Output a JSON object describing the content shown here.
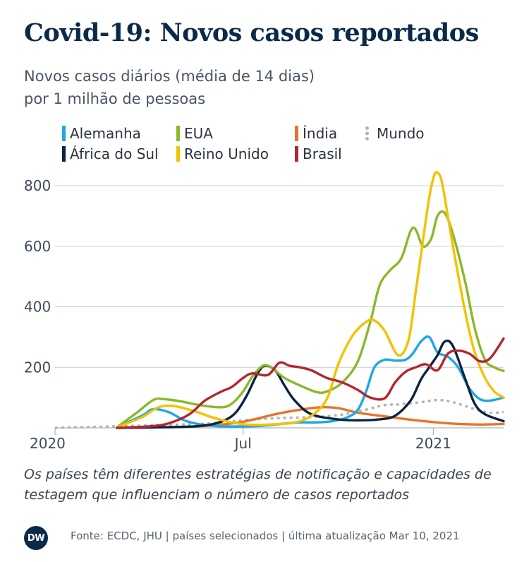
{
  "title": "Covid-19: Novos casos reportados",
  "subtitle_line1": "Novos casos diários (média de 14 dias)",
  "subtitle_line2": "por 1 milhão de pessoas",
  "note": "Os países têm diferentes estratégias de notificação e capacidades de testagem que influenciam o número de casos reportados",
  "logo_text": "DW",
  "source": "Fonte: ECDC, JHU | países selecionados | última atualização Mar 10, 2021",
  "chart_data": {
    "type": "line",
    "y_ticks": [
      "800",
      "600",
      "400",
      "200"
    ],
    "y_tick_values": [
      800,
      600,
      400,
      200
    ],
    "x_tick_labels": [
      "2020",
      "Jul",
      "2021"
    ],
    "x_tick_values": [
      "2020-01-01",
      "2020-07-01",
      "2021-01-01"
    ],
    "x_range": [
      "2020-01-01",
      "2021-03-10"
    ],
    "ylim": [
      0,
      860
    ],
    "grid": true,
    "legend_position": "top",
    "series": [
      {
        "name": "Alemanha",
        "color": "#1fa7e5",
        "style": "solid",
        "x": [
          "2020-03-01",
          "2020-03-25",
          "2020-04-05",
          "2020-04-20",
          "2020-05-05",
          "2020-05-20",
          "2020-06-10",
          "2020-07-01",
          "2020-07-20",
          "2020-08-10",
          "2020-08-25",
          "2020-09-10",
          "2020-09-25",
          "2020-10-10",
          "2020-10-20",
          "2020-10-28",
          "2020-11-05",
          "2020-11-15",
          "2020-11-25",
          "2020-12-05",
          "2020-12-12",
          "2020-12-20",
          "2020-12-28",
          "2021-01-05",
          "2021-01-15",
          "2021-01-25",
          "2021-02-05",
          "2021-02-15",
          "2021-02-25",
          "2021-03-10"
        ],
        "y": [
          2,
          40,
          62,
          52,
          25,
          12,
          5,
          5,
          7,
          14,
          18,
          18,
          22,
          35,
          60,
          120,
          200,
          225,
          222,
          225,
          245,
          285,
          300,
          250,
          235,
          200,
          130,
          95,
          90,
          100
        ]
      },
      {
        "name": "África do Sul",
        "color": "#0c2340",
        "style": "solid",
        "x": [
          "2020-03-01",
          "2020-04-15",
          "2020-05-15",
          "2020-06-01",
          "2020-06-15",
          "2020-06-25",
          "2020-07-05",
          "2020-07-15",
          "2020-07-22",
          "2020-08-01",
          "2020-08-10",
          "2020-08-20",
          "2020-09-05",
          "2020-10-01",
          "2020-10-20",
          "2020-11-10",
          "2020-11-25",
          "2020-12-10",
          "2020-12-20",
          "2020-12-28",
          "2021-01-05",
          "2021-01-12",
          "2021-01-20",
          "2021-02-01",
          "2021-02-10",
          "2021-02-20",
          "2021-03-10"
        ],
        "y": [
          0,
          2,
          5,
          12,
          28,
          55,
          110,
          180,
          205,
          190,
          140,
          90,
          45,
          28,
          25,
          28,
          40,
          90,
          160,
          200,
          240,
          285,
          270,
          160,
          80,
          45,
          22
        ]
      },
      {
        "name": "EUA",
        "color": "#8ab82a",
        "style": "solid",
        "x": [
          "2020-03-01",
          "2020-03-20",
          "2020-04-05",
          "2020-04-15",
          "2020-05-01",
          "2020-05-20",
          "2020-06-10",
          "2020-06-20",
          "2020-07-01",
          "2020-07-10",
          "2020-07-20",
          "2020-07-28",
          "2020-08-10",
          "2020-08-25",
          "2020-09-10",
          "2020-09-20",
          "2020-10-05",
          "2020-10-20",
          "2020-11-01",
          "2020-11-10",
          "2020-11-20",
          "2020-12-01",
          "2020-12-10",
          "2020-12-15",
          "2020-12-22",
          "2020-12-30",
          "2021-01-05",
          "2021-01-12",
          "2021-01-20",
          "2021-02-01",
          "2021-02-10",
          "2021-02-20",
          "2021-03-01",
          "2021-03-10"
        ],
        "y": [
          2,
          50,
          92,
          95,
          88,
          75,
          68,
          80,
          120,
          170,
          205,
          200,
          165,
          140,
          118,
          120,
          150,
          220,
          350,
          470,
          520,
          560,
          650,
          655,
          600,
          625,
          700,
          710,
          640,
          480,
          330,
          225,
          200,
          188
        ]
      },
      {
        "name": "Reino Unido",
        "color": "#f2c200",
        "style": "solid",
        "x": [
          "2020-03-01",
          "2020-03-25",
          "2020-04-10",
          "2020-04-25",
          "2020-05-15",
          "2020-06-01",
          "2020-06-20",
          "2020-07-10",
          "2020-08-01",
          "2020-08-20",
          "2020-09-05",
          "2020-09-20",
          "2020-10-01",
          "2020-10-15",
          "2020-10-28",
          "2020-11-05",
          "2020-11-15",
          "2020-11-28",
          "2020-12-08",
          "2020-12-15",
          "2020-12-22",
          "2020-12-28",
          "2021-01-02",
          "2021-01-06",
          "2021-01-10",
          "2021-01-20",
          "2021-02-01",
          "2021-02-10",
          "2021-02-20",
          "2021-03-01",
          "2021-03-10"
        ],
        "y": [
          2,
          35,
          68,
          72,
          55,
          35,
          18,
          10,
          12,
          18,
          40,
          95,
          210,
          305,
          350,
          355,
          320,
          240,
          290,
          450,
          620,
          760,
          835,
          840,
          800,
          600,
          380,
          250,
          165,
          120,
          100
        ]
      },
      {
        "name": "Índia",
        "color": "#e8732a",
        "style": "solid",
        "x": [
          "2020-03-01",
          "2020-05-01",
          "2020-06-01",
          "2020-07-01",
          "2020-08-01",
          "2020-08-25",
          "2020-09-15",
          "2020-10-01",
          "2020-10-20",
          "2020-11-15",
          "2020-12-15",
          "2021-01-15",
          "2021-02-15",
          "2021-03-10"
        ],
        "y": [
          0,
          3,
          8,
          20,
          45,
          60,
          68,
          65,
          50,
          38,
          25,
          15,
          11,
          13
        ]
      },
      {
        "name": "Mundo",
        "color": "#b0b4ba",
        "style": "dotted",
        "x": [
          "2020-01-01",
          "2020-04-01",
          "2020-06-01",
          "2020-07-01",
          "2020-08-01",
          "2020-09-01",
          "2020-10-01",
          "2020-10-25",
          "2020-11-15",
          "2020-12-01",
          "2020-12-20",
          "2021-01-05",
          "2021-01-20",
          "2021-02-10",
          "2021-02-25",
          "2021-03-10"
        ],
        "y": [
          0,
          8,
          15,
          25,
          32,
          35,
          42,
          58,
          75,
          78,
          85,
          92,
          85,
          62,
          50,
          52
        ]
      },
      {
        "name": "Brasil",
        "color": "#b32630",
        "style": "solid",
        "x": [
          "2020-03-01",
          "2020-04-01",
          "2020-04-20",
          "2020-05-10",
          "2020-05-25",
          "2020-06-10",
          "2020-06-20",
          "2020-07-01",
          "2020-07-10",
          "2020-07-25",
          "2020-08-05",
          "2020-08-15",
          "2020-08-25",
          "2020-09-05",
          "2020-09-20",
          "2020-10-05",
          "2020-10-20",
          "2020-11-01",
          "2020-11-15",
          "2020-11-25",
          "2020-12-05",
          "2020-12-15",
          "2020-12-25",
          "2021-01-05",
          "2021-01-15",
          "2021-01-25",
          "2021-02-05",
          "2021-02-15",
          "2021-02-25",
          "2021-03-10"
        ],
        "y": [
          0,
          5,
          15,
          45,
          90,
          120,
          135,
          165,
          180,
          175,
          215,
          205,
          200,
          190,
          165,
          150,
          125,
          100,
          98,
          150,
          185,
          200,
          210,
          190,
          245,
          255,
          245,
          220,
          230,
          295
        ]
      }
    ]
  }
}
